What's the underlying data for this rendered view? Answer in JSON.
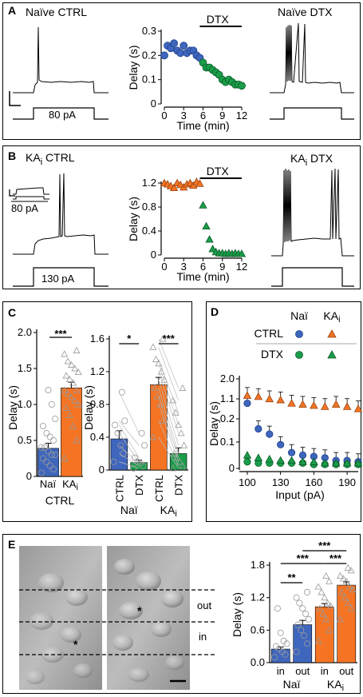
{
  "figure": {
    "panels": {
      "A": {
        "label": "A",
        "trace_left_title": "Naïve CTRL",
        "trace_right_title": "Naïve DTX",
        "step_label": "80 pA",
        "bar_label": "DTX",
        "xlabel": "Time (min)",
        "ylabel": "Delay (s)"
      },
      "B": {
        "label": "B",
        "trace_left_title": "KA",
        "trace_left_sub": "i",
        "trace_left_suffix": " CTRL",
        "trace_right_title": "KA",
        "trace_right_sub": "i",
        "trace_right_suffix": " DTX",
        "inset_step_label": "80 pA",
        "step_label": "130 pA",
        "bar_label": "DTX",
        "xlabel": "Time (min)",
        "ylabel": "Delay (s)"
      },
      "C": {
        "label": "C",
        "ylabel": "Delay (s)",
        "left_xlabels": [
          "Naï",
          "KA"
        ],
        "left_xlabel_sub": "i",
        "left_group": "CTRL",
        "left_sig": "***",
        "right_xlabels": [
          "CTRL",
          "DTX",
          "CTRL",
          "DTX"
        ],
        "right_groups": [
          "Naï",
          "KA"
        ],
        "right_group_sub": "i",
        "right_sigs": [
          "*",
          "***"
        ]
      },
      "D": {
        "label": "D",
        "ylabel": "Delay (s)",
        "xlabel": "Input (pA)",
        "legend_cols": [
          "Naï",
          "KA"
        ],
        "legend_col_sub": "i",
        "legend_rows": [
          "CTRL",
          "DTX"
        ]
      },
      "E": {
        "label": "E",
        "band_labels": [
          "out",
          "in"
        ],
        "ylabel": "Delay (s)",
        "xlabels": [
          "in",
          "out",
          "in",
          "out"
        ],
        "groups": [
          "Naï",
          "KA"
        ],
        "group_sub": "i",
        "sigs": [
          "**",
          "***",
          "***",
          "***"
        ]
      }
    },
    "colors": {
      "naive": "#3f66bd",
      "ka": "#f47424",
      "dtx_naive": "#1a9d4a",
      "dtx_ka": "#1a9d4a"
    }
  },
  "chart_data": [
    {
      "type": "scatter",
      "id": "A-time-course",
      "xlabel": "Time (min)",
      "ylabel": "Delay (s)",
      "xlim": [
        0,
        12
      ],
      "ylim": [
        0,
        0.3
      ],
      "xticks": [
        0,
        3,
        6,
        9,
        12
      ],
      "yticks": [
        0,
        0.1,
        0.2,
        0.3
      ],
      "series": [
        {
          "x": [
            0,
            0.5,
            1,
            1.5,
            2,
            2.5,
            3,
            3.5,
            4,
            4.5,
            5,
            5.5
          ],
          "y": [
            0.2,
            0.24,
            0.23,
            0.25,
            0.22,
            0.21,
            0.24,
            0.21,
            0.22,
            0.22,
            0.2,
            0.19
          ]
        },
        {
          "x": [
            6,
            6.5,
            7,
            7.5,
            8,
            8.5,
            9,
            9.5,
            10,
            10.5,
            11,
            11.5,
            12
          ],
          "y": [
            0.17,
            0.15,
            0.15,
            0.14,
            0.13,
            0.12,
            0.1,
            0.09,
            0.1,
            0.09,
            0.08,
            0.08,
            0.075
          ]
        }
      ]
    },
    {
      "type": "scatter",
      "id": "B-time-course",
      "xlabel": "Time (min)",
      "ylabel": "Delay (s)",
      "xlim": [
        0,
        12
      ],
      "ylim": [
        0,
        1.2
      ],
      "xticks": [
        0,
        3,
        6,
        9,
        12
      ],
      "yticks": [
        0,
        0.4,
        0.8,
        1.2
      ],
      "series": [
        {
          "x": [
            0,
            0.5,
            1,
            1.5,
            2,
            2.5,
            3,
            3.5,
            4,
            4.5,
            5,
            5.5
          ],
          "y": [
            1.2,
            1.18,
            1.15,
            1.12,
            1.2,
            1.17,
            1.13,
            1.18,
            1.2,
            1.16,
            1.22,
            1.19
          ]
        },
        {
          "x": [
            6,
            6.5,
            7,
            7.5,
            8,
            8.5,
            9,
            9.5,
            10,
            10.5,
            11,
            11.5,
            12
          ],
          "y": [
            0.83,
            0.48,
            0.26,
            0.1,
            0.05,
            0.03,
            0.03,
            0.02,
            0.03,
            0.02,
            0.03,
            0.02,
            0.02
          ]
        }
      ]
    },
    {
      "type": "bar",
      "id": "C-left",
      "ylabel": "Delay (s)",
      "ylim": [
        0,
        2.0
      ],
      "yticks": [
        0,
        0.5,
        1.0,
        1.5,
        2.0
      ],
      "categories": [
        "Naï",
        "KAi"
      ],
      "values": [
        0.39,
        1.23
      ],
      "errors": [
        0.07,
        0.08
      ],
      "points": [
        [
          0.05,
          0.1,
          0.15,
          0.2,
          0.25,
          0.3,
          0.3,
          0.35,
          0.4,
          0.4,
          0.5,
          0.55,
          0.6,
          0.7,
          0.8,
          1.0,
          1.2
        ],
        [
          0.25,
          0.5,
          0.7,
          0.85,
          0.95,
          1.0,
          1.05,
          1.1,
          1.15,
          1.2,
          1.2,
          1.3,
          1.35,
          1.4,
          1.45,
          1.5,
          1.55,
          1.6,
          1.7,
          1.75
        ]
      ]
    },
    {
      "type": "bar",
      "id": "C-right",
      "ylabel": "Delay (s)",
      "ylim": [
        0,
        1.6
      ],
      "yticks": [
        0,
        0.4,
        0.8,
        1.2,
        1.6
      ],
      "categories": [
        "CTRL",
        "DTX",
        "CTRL",
        "DTX"
      ],
      "values": [
        0.38,
        0.09,
        1.04,
        0.2
      ],
      "errors": [
        0.1,
        0.03,
        0.09,
        0.07
      ],
      "points": [
        [
          0.1,
          0.2,
          0.3,
          0.45,
          0.55,
          0.6,
          0.95
        ],
        [
          0.02,
          0.05,
          0.08,
          0.1,
          0.15,
          0.3,
          0.45
        ],
        [
          0.4,
          0.6,
          0.8,
          0.9,
          1.0,
          1.1,
          1.2,
          1.3,
          1.35,
          1.5,
          1.6
        ],
        [
          0.02,
          0.05,
          0.1,
          0.15,
          0.2,
          0.3,
          0.45,
          0.55,
          0.7,
          0.85,
          1.0
        ]
      ]
    },
    {
      "type": "line",
      "id": "D-fI",
      "xlabel": "Input (pA)",
      "ylabel": "Delay (s)",
      "xlim": [
        95,
        200
      ],
      "xticks": [
        100,
        130,
        160,
        190
      ],
      "yticks_top": [
        0.2,
        1.1,
        2.0
      ],
      "yticks_bottom": [
        0,
        0.1,
        0.2
      ],
      "series": [
        {
          "name": "Naï CTRL",
          "x": [
            100,
            110,
            120,
            130,
            140,
            150,
            160,
            170,
            180,
            190,
            200
          ],
          "y": [
            0.9,
            0.15,
            0.13,
            0.09,
            0.06,
            0.05,
            0.045,
            0.04,
            0.03,
            0.03,
            0.025
          ]
        },
        {
          "name": "KAi CTRL",
          "x": [
            100,
            110,
            120,
            130,
            140,
            150,
            160,
            170,
            180,
            190,
            200
          ],
          "y": [
            1.25,
            1.2,
            1.1,
            1.05,
            0.9,
            0.85,
            0.8,
            0.75,
            0.85,
            0.75,
            0.65
          ]
        },
        {
          "name": "Naï DTX",
          "x": [
            100,
            110,
            120,
            130,
            140,
            150,
            160,
            170,
            180,
            190,
            200
          ],
          "y": [
            0.025,
            0.02,
            0.02,
            0.02,
            0.02,
            0.02,
            0.015,
            0.015,
            0.015,
            0.015,
            0.015
          ]
        },
        {
          "name": "KAi DTX",
          "x": [
            100,
            110,
            120,
            130,
            140,
            150,
            160,
            170,
            180,
            190,
            200
          ],
          "y": [
            0.05,
            0.04,
            0.035,
            0.03,
            0.03,
            0.025,
            0.025,
            0.02,
            0.02,
            0.02,
            0.02
          ]
        }
      ]
    },
    {
      "type": "bar",
      "id": "E-bars",
      "ylabel": "Delay (s)",
      "ylim": [
        0,
        1.8
      ],
      "yticks": [
        0,
        0.6,
        1.2,
        1.8
      ],
      "categories": [
        "in",
        "out",
        "in",
        "out"
      ],
      "values": [
        0.25,
        0.7,
        1.03,
        1.43
      ],
      "errors": [
        0.04,
        0.08,
        0.06,
        0.06
      ],
      "points": [
        [
          0.1,
          0.15,
          0.2,
          0.25,
          0.3,
          0.35,
          0.4,
          0.55,
          1.0
        ],
        [
          0.2,
          0.35,
          0.5,
          0.6,
          0.7,
          0.8,
          0.9,
          1.0,
          1.1,
          1.2,
          1.3
        ],
        [
          0.4,
          0.6,
          0.8,
          0.9,
          1.0,
          1.05,
          1.1,
          1.2,
          1.3,
          1.4,
          1.5,
          1.6
        ],
        [
          0.8,
          1.0,
          1.1,
          1.2,
          1.3,
          1.35,
          1.4,
          1.5,
          1.55,
          1.6,
          1.7,
          1.75
        ]
      ]
    }
  ]
}
